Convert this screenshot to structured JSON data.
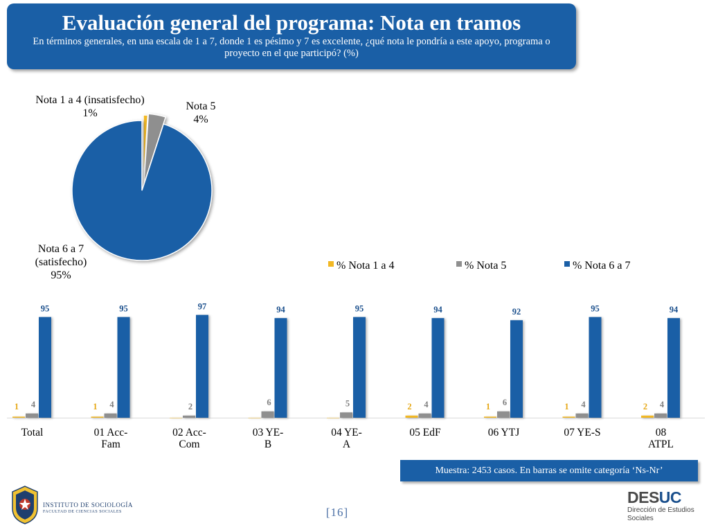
{
  "header": {
    "title": "Evaluación general del programa: Nota en tramos",
    "subtitle": "En términos generales, en una escala de 1 a 7, donde 1 es pésimo y 7 es excelente, ¿qué nota le pondría a este apoyo, programa o proyecto en el que participó? (%)"
  },
  "colors": {
    "nota14": "#f2b824",
    "nota5": "#8f8f8f",
    "nota67": "#1a5fa6",
    "header_bg": "#1a5fa6"
  },
  "chart_data": [
    {
      "type": "pie",
      "labels": [
        "Nota 1 a 4 (insatisfecho)",
        "Nota 5",
        "Nota 6 a 7 (satisfecho)"
      ],
      "values": [
        1,
        4,
        95
      ],
      "value_labels": [
        "1%",
        "4%",
        "95%"
      ],
      "label_lines": [
        [
          "Nota 1 a 4 (insatisfecho)"
        ],
        [
          "Nota 5"
        ],
        [
          "Nota 6 a 7",
          "(satisfecho)"
        ]
      ]
    },
    {
      "type": "bar",
      "categories": [
        "Total",
        "01 Acc-Fam",
        "02 Acc-Com",
        "03 YE-B",
        "04 YE-A",
        "05 EdF",
        "06 YTJ",
        "07 YE-S",
        "08 ATPL"
      ],
      "category_lines": [
        [
          "Total"
        ],
        [
          "01 Acc-",
          "Fam"
        ],
        [
          "02 Acc-",
          "Com"
        ],
        [
          "03 YE-",
          "B"
        ],
        [
          "04 YE-",
          "A"
        ],
        [
          "05 EdF"
        ],
        [
          "06 YTJ"
        ],
        [
          "07 YE-S"
        ],
        [
          "08",
          "ATPL"
        ]
      ],
      "series": [
        {
          "name": "% Nota 1 a 4",
          "values": [
            1,
            1,
            0,
            0,
            0,
            2,
            1,
            1,
            2
          ],
          "labels": [
            "1",
            "1",
            "",
            "",
            "",
            "2",
            "1",
            "1",
            "2"
          ]
        },
        {
          "name": "% Nota 5",
          "values": [
            4,
            4,
            2,
            6,
            5,
            4,
            6,
            4,
            4
          ],
          "labels": [
            "4",
            "4",
            "2",
            "6",
            "5",
            "4",
            "6",
            "4",
            "4"
          ]
        },
        {
          "name": "% Nota 6 a 7",
          "values": [
            95,
            95,
            97,
            94,
            95,
            94,
            92,
            95,
            94
          ],
          "labels": [
            "95",
            "95",
            "97",
            "94",
            "95",
            "94",
            "92",
            "95",
            "94"
          ]
        }
      ],
      "legend_position": "top-right",
      "ylim": [
        0,
        100
      ]
    }
  ],
  "footer": {
    "sample_note": "Muestra: 2453 casos. En barras se omite categoría ‘Ns-Nr’",
    "page_number": "[16]",
    "institute_name": "INSTITUTO DE SOCIOLOGÍA",
    "institute_faculty": "FACULTAD DE CIENCIAS SOCIALES",
    "desuc_brand_a": "DES",
    "desuc_brand_b": "UC",
    "desuc_sub_1": "Dirección de Estudios",
    "desuc_sub_2": "Sociales"
  }
}
